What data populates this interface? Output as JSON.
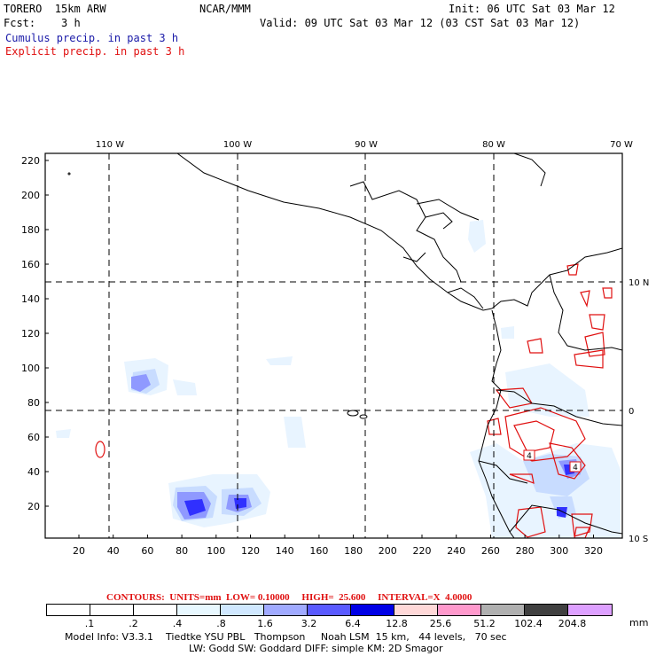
{
  "header": {
    "model": "TORERO  15km ARW",
    "org": "NCAR/MMM",
    "init": "Init: 06 UTC Sat 03 Mar 12",
    "fcst": "Fcst:    3 h",
    "valid": "Valid: 09 UTC Sat 03 Mar 12 (03 CST Sat 03 Mar 12)",
    "field1": "Cumulus precip. in past 3 h",
    "field2": "Explicit precip. in past 3 h"
  },
  "map": {
    "lon_labels": [
      "110 W",
      "100 W",
      "90 W",
      "80 W",
      "70 W"
    ],
    "lat_labels": [
      "10 N",
      "0",
      "10 S"
    ],
    "y_ticks": [
      "220",
      "200",
      "180",
      "160",
      "140",
      "120",
      "100",
      "80",
      "60",
      "40",
      "20"
    ],
    "x_ticks": [
      "20",
      "40",
      "60",
      "80",
      "100",
      "120",
      "140",
      "160",
      "180",
      "200",
      "220",
      "240",
      "260",
      "280",
      "300",
      "320"
    ],
    "contour_labels": [
      "4",
      "4"
    ]
  },
  "legend": {
    "contours": "CONTOURS:  UNITS=mm  LOW= 0.10000     HIGH=  25.600     INTERVAL=X  4.0000",
    "units": "mm",
    "levels": [
      ".1",
      ".2",
      ".4",
      ".8",
      "1.6",
      "3.2",
      "6.4",
      "12.8",
      "25.6",
      "51.2",
      "102.4",
      "204.8"
    ],
    "colors": [
      "#ffffff",
      "#ffffff",
      "#ffffff",
      "#e8f8ff",
      "#d0e8ff",
      "#a0aaff",
      "#5a5aff",
      "#0000e6",
      "#ffd8d8",
      "#ff99cc",
      "#b0b0b0",
      "#404040",
      "#dda0ff"
    ]
  },
  "footer": {
    "line1": "Model Info: V3.3.1    Tiedtke YSU PBL   Thompson     Noah LSM  15 km,   44 levels,   70 sec",
    "line2": "LW: Godd SW: Goddard DIFF: simple KM: 2D Smagor"
  }
}
